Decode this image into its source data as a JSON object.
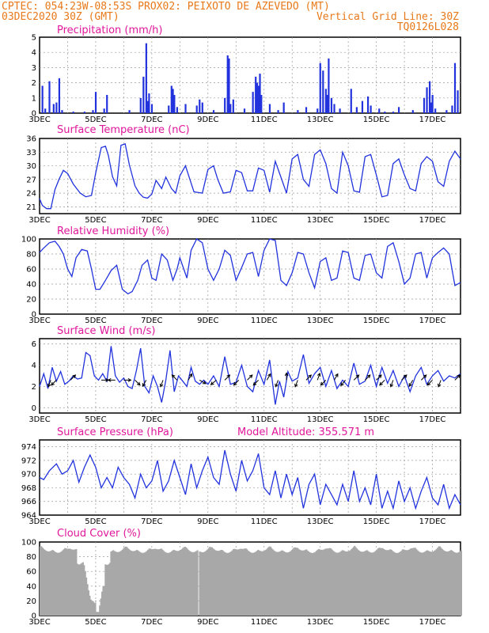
{
  "header": {
    "line1": "CPTEC:  054:23W-08:53S  PROX02: PEIXOTO DE AZEVEDO (MT)",
    "line2_left": "03DEC2020 30Z (GMT)",
    "line2_right": "Vertical Grid Line: 30Z",
    "line3_right": "TQ0126L028",
    "colors": {
      "header": "#e8791a",
      "title": "#e0179b",
      "series": "#2233dd",
      "cloud": "#a8a8a8"
    }
  },
  "x_axis": {
    "start_day": 3,
    "end_day": 18,
    "tick_labels": [
      "3DEC",
      "5DEC",
      "7DEC",
      "9DEC",
      "11DEC",
      "13DEC",
      "15DEC",
      "17DEC"
    ],
    "tick_days": [
      3,
      5,
      7,
      9,
      11,
      13,
      15,
      17
    ]
  },
  "chart_data": [
    {
      "type": "bar",
      "title": "Precipitation (mm/h)",
      "ylim": [
        0,
        5
      ],
      "yticks": [
        0,
        1,
        2,
        3,
        4,
        5
      ],
      "x": [
        3.1,
        3.2,
        3.35,
        3.5,
        3.6,
        3.7,
        3.8,
        4.2,
        4.6,
        4.9,
        5.0,
        5.3,
        5.4,
        6.2,
        6.6,
        6.7,
        6.8,
        6.85,
        6.9,
        7.0,
        7.6,
        7.7,
        7.75,
        7.8,
        7.9,
        8.2,
        8.6,
        8.7,
        8.8,
        9.2,
        9.6,
        9.7,
        9.75,
        9.8,
        9.9,
        10.3,
        10.6,
        10.7,
        10.75,
        10.8,
        10.85,
        10.9,
        11.2,
        11.5,
        11.7,
        12.2,
        12.5,
        12.9,
        13.0,
        13.1,
        13.2,
        13.25,
        13.3,
        13.4,
        13.5,
        13.7,
        14.1,
        14.3,
        14.5,
        14.7,
        14.8,
        15.1,
        15.3,
        15.6,
        15.8,
        16.3,
        16.7,
        16.8,
        16.9,
        16.95,
        17.0,
        17.1,
        17.5,
        17.7,
        17.8,
        17.9
      ],
      "values": [
        1.8,
        0.3,
        2.1,
        0.6,
        0.7,
        2.3,
        0.2,
        0.1,
        0.1,
        0.2,
        1.4,
        0.3,
        1.2,
        0.2,
        1.0,
        2.4,
        4.6,
        0.8,
        1.3,
        0.6,
        0.5,
        1.8,
        1.6,
        1.2,
        0.4,
        0.6,
        0.5,
        0.9,
        0.7,
        0.2,
        1.0,
        3.8,
        3.6,
        0.6,
        0.9,
        0.3,
        1.4,
        2.4,
        2.0,
        1.8,
        2.6,
        1.2,
        0.6,
        0.2,
        0.7,
        0.2,
        0.4,
        0.3,
        3.3,
        2.8,
        1.6,
        1.2,
        3.6,
        1.0,
        0.6,
        0.3,
        1.6,
        0.4,
        0.8,
        1.1,
        0.5,
        0.3,
        0.1,
        0.1,
        0.4,
        0.2,
        1.0,
        1.7,
        2.1,
        0.7,
        1.2,
        0.3,
        0.2,
        0.5,
        3.3,
        1.5
      ]
    },
    {
      "type": "line",
      "title": "Surface Temperature (nC)",
      "ylim": [
        19.5,
        36
      ],
      "yticks": [
        21,
        24,
        27,
        30,
        33,
        36
      ],
      "x": [
        3.0,
        3.1,
        3.25,
        3.4,
        3.55,
        3.7,
        3.85,
        4.0,
        4.2,
        4.45,
        4.65,
        4.85,
        5.0,
        5.2,
        5.35,
        5.45,
        5.6,
        5.75,
        5.9,
        6.05,
        6.2,
        6.4,
        6.55,
        6.7,
        6.85,
        7.0,
        7.15,
        7.35,
        7.5,
        7.7,
        7.85,
        8.0,
        8.2,
        8.5,
        8.8,
        9.0,
        9.2,
        9.35,
        9.55,
        9.8,
        10.0,
        10.2,
        10.4,
        10.6,
        10.8,
        11.0,
        11.2,
        11.4,
        11.6,
        11.8,
        12.0,
        12.2,
        12.4,
        12.6,
        12.8,
        13.0,
        13.2,
        13.4,
        13.6,
        13.8,
        14.0,
        14.2,
        14.4,
        14.6,
        14.8,
        15.0,
        15.2,
        15.4,
        15.6,
        15.8,
        16.0,
        16.2,
        16.4,
        16.6,
        16.8,
        17.0,
        17.2,
        17.4,
        17.6,
        17.8,
        18.0
      ],
      "values": [
        22.8,
        21.3,
        20.6,
        20.6,
        24.8,
        27.1,
        29.0,
        28.3,
        26.0,
        24.0,
        23.2,
        23.5,
        28.4,
        34.0,
        34.3,
        32.3,
        27.6,
        25.6,
        34.5,
        34.8,
        30.2,
        25.6,
        24.0,
        23.1,
        22.9,
        23.8,
        26.8,
        25.0,
        27.5,
        25.0,
        24.0,
        27.8,
        30.0,
        24.3,
        24.0,
        29.2,
        30.0,
        27.0,
        24.0,
        24.3,
        29.0,
        28.5,
        24.5,
        24.5,
        29.5,
        29.0,
        24.2,
        31.0,
        27.5,
        24.0,
        31.5,
        32.5,
        27.0,
        25.5,
        32.5,
        33.5,
        30.5,
        25.0,
        24.0,
        33.0,
        30.0,
        24.5,
        24.2,
        32.0,
        32.5,
        28.0,
        23.2,
        23.5,
        30.5,
        31.5,
        28.0,
        25.0,
        24.5,
        30.5,
        32.0,
        31.0,
        26.5,
        25.5,
        31.0,
        33.2,
        31.5
      ]
    },
    {
      "type": "line",
      "title": "Relative Humidity (%)",
      "ylim": [
        0,
        100
      ],
      "yticks": [
        0,
        20,
        40,
        60,
        80,
        100
      ],
      "x": [
        3.0,
        3.15,
        3.35,
        3.55,
        3.7,
        3.85,
        4.0,
        4.15,
        4.3,
        4.5,
        4.7,
        4.85,
        5.0,
        5.15,
        5.35,
        5.55,
        5.75,
        5.95,
        6.15,
        6.3,
        6.5,
        6.65,
        6.85,
        7.0,
        7.15,
        7.35,
        7.55,
        7.75,
        7.9,
        8.0,
        8.25,
        8.4,
        8.6,
        8.8,
        9.0,
        9.2,
        9.4,
        9.6,
        9.8,
        10.0,
        10.2,
        10.4,
        10.6,
        10.8,
        11.0,
        11.2,
        11.4,
        11.6,
        11.8,
        12.0,
        12.2,
        12.4,
        12.6,
        12.8,
        13.0,
        13.2,
        13.4,
        13.6,
        13.8,
        14.0,
        14.2,
        14.4,
        14.6,
        14.8,
        15.0,
        15.2,
        15.4,
        15.6,
        15.8,
        16.0,
        16.2,
        16.4,
        16.6,
        16.8,
        17.0,
        17.2,
        17.4,
        17.6,
        17.8,
        18.0
      ],
      "values": [
        82,
        88,
        95,
        97,
        90,
        80,
        60,
        50,
        75,
        86,
        84,
        60,
        33,
        33,
        45,
        58,
        65,
        33,
        27,
        30,
        45,
        65,
        72,
        48,
        45,
        80,
        72,
        45,
        60,
        75,
        48,
        85,
        100,
        95,
        60,
        45,
        60,
        85,
        78,
        45,
        62,
        80,
        82,
        50,
        85,
        100,
        98,
        45,
        38,
        55,
        82,
        80,
        55,
        35,
        70,
        75,
        45,
        48,
        84,
        82,
        48,
        45,
        78,
        80,
        55,
        48,
        90,
        95,
        70,
        40,
        48,
        80,
        82,
        48,
        75,
        82,
        88,
        80,
        38,
        42
      ]
    },
    {
      "type": "line",
      "title": "Surface Wind (m/s)",
      "ylim": [
        -0.5,
        6.5
      ],
      "yticks": [
        0,
        2,
        4,
        6
      ],
      "x": [
        3.0,
        3.15,
        3.3,
        3.45,
        3.6,
        3.75,
        3.9,
        4.05,
        4.2,
        4.35,
        4.5,
        4.65,
        4.8,
        4.95,
        5.1,
        5.25,
        5.4,
        5.55,
        5.7,
        5.85,
        6.0,
        6.15,
        6.3,
        6.45,
        6.6,
        6.75,
        6.9,
        7.05,
        7.2,
        7.35,
        7.5,
        7.65,
        7.8,
        7.95,
        8.1,
        8.25,
        8.4,
        8.55,
        8.7,
        8.85,
        9.0,
        9.2,
        9.4,
        9.6,
        9.8,
        10.0,
        10.2,
        10.4,
        10.6,
        10.8,
        11.0,
        11.2,
        11.4,
        11.55,
        11.7,
        11.85,
        12.0,
        12.2,
        12.4,
        12.6,
        12.8,
        13.0,
        13.2,
        13.4,
        13.6,
        13.8,
        14.0,
        14.2,
        14.4,
        14.6,
        14.8,
        15.0,
        15.2,
        15.4,
        15.6,
        15.8,
        16.0,
        16.2,
        16.4,
        16.6,
        16.8,
        17.0,
        17.2,
        17.4,
        17.6,
        17.8,
        18.0
      ],
      "values": [
        2.0,
        3.2,
        1.8,
        3.8,
        2.5,
        3.4,
        2.2,
        2.5,
        3.0,
        2.7,
        2.8,
        5.2,
        4.9,
        3.0,
        2.6,
        3.2,
        2.5,
        5.8,
        3.0,
        2.4,
        2.8,
        2.0,
        1.8,
        3.5,
        5.6,
        2.0,
        1.4,
        3.0,
        2.0,
        0.5,
        2.6,
        5.4,
        1.5,
        3.0,
        2.5,
        2.0,
        3.8,
        2.5,
        2.2,
        2.6,
        2.2,
        3.0,
        2.0,
        4.8,
        2.2,
        2.4,
        4.0,
        2.0,
        1.5,
        3.5,
        2.2,
        4.5,
        0.3,
        2.5,
        1.0,
        3.4,
        2.5,
        2.8,
        5.0,
        2.3,
        3.2,
        3.8,
        2.0,
        3.5,
        1.8,
        2.6,
        2.0,
        4.2,
        2.2,
        2.5,
        4.0,
        2.0,
        3.8,
        2.3,
        3.5,
        2.0,
        3.0,
        1.5,
        3.0,
        3.8,
        2.2,
        3.0,
        3.5,
        2.5,
        3.0,
        2.8,
        3.2
      ],
      "arrows_x": [
        3.4,
        3.6,
        4.1,
        5.2,
        5.7,
        6.0,
        6.4,
        6.8,
        7.4,
        7.9,
        8.3,
        8.7,
        9.3,
        9.6,
        10.1,
        10.4,
        10.8,
        11.1,
        11.5,
        11.8,
        12.2,
        12.5,
        12.9,
        13.2,
        13.5,
        13.9,
        14.2,
        14.6,
        15.0,
        15.3,
        15.6,
        15.9,
        16.3,
        16.6,
        17.0,
        17.3,
        17.8
      ],
      "arrows_dir": [
        200,
        225,
        45,
        90,
        270,
        90,
        135,
        210,
        200,
        315,
        30,
        120,
        230,
        45,
        225,
        45,
        225,
        30,
        200,
        0,
        200,
        45,
        20,
        225,
        30,
        220,
        45,
        45,
        45,
        225,
        200,
        45,
        210,
        45,
        225,
        200,
        45
      ]
    },
    {
      "type": "line",
      "title": "Surface Pressure (hPa)",
      "annotation": "Model Altitude: 355.571 m",
      "ylim": [
        964,
        975
      ],
      "yticks": [
        964,
        966,
        968,
        970,
        972,
        974
      ],
      "x": [
        3.0,
        3.15,
        3.35,
        3.6,
        3.8,
        4.0,
        4.2,
        4.4,
        4.6,
        4.8,
        5.0,
        5.2,
        5.4,
        5.6,
        5.8,
        6.0,
        6.2,
        6.4,
        6.6,
        6.8,
        7.0,
        7.2,
        7.4,
        7.6,
        7.8,
        8.0,
        8.2,
        8.4,
        8.6,
        8.8,
        9.0,
        9.2,
        9.4,
        9.6,
        9.8,
        10.0,
        10.2,
        10.4,
        10.6,
        10.8,
        11.0,
        11.2,
        11.4,
        11.6,
        11.8,
        12.0,
        12.2,
        12.4,
        12.6,
        12.8,
        13.0,
        13.2,
        13.4,
        13.6,
        13.8,
        14.0,
        14.2,
        14.4,
        14.6,
        14.8,
        15.0,
        15.2,
        15.4,
        15.6,
        15.8,
        16.0,
        16.2,
        16.4,
        16.6,
        16.8,
        17.0,
        17.2,
        17.4,
        17.6,
        17.8,
        18.0
      ],
      "values": [
        969.5,
        969.2,
        970.5,
        971.5,
        970.0,
        970.5,
        972.0,
        968.8,
        971.0,
        972.8,
        971.0,
        968.0,
        969.5,
        968.0,
        971.0,
        969.5,
        968.5,
        966.5,
        970.0,
        968.0,
        969.0,
        972.0,
        967.5,
        969.0,
        972.0,
        969.5,
        967.0,
        971.5,
        968.0,
        970.5,
        972.5,
        969.5,
        968.5,
        973.5,
        970.0,
        967.5,
        972.0,
        969.0,
        970.5,
        973.0,
        968.0,
        967.0,
        970.5,
        966.5,
        970.0,
        967.0,
        969.5,
        965.0,
        968.5,
        970.0,
        965.5,
        968.5,
        967.0,
        965.5,
        968.5,
        966.0,
        970.5,
        966.0,
        968.0,
        965.5,
        970.0,
        965.0,
        967.5,
        965.0,
        969.0,
        966.0,
        968.0,
        965.0,
        967.5,
        969.5,
        966.5,
        965.5,
        968.5,
        965.0,
        967.0,
        965.5
      ]
    },
    {
      "type": "bar",
      "title": "Cloud Cover (%)",
      "ylim": [
        0,
        100
      ],
      "yticks": [
        0,
        20,
        40,
        60,
        80,
        100
      ]
    }
  ]
}
